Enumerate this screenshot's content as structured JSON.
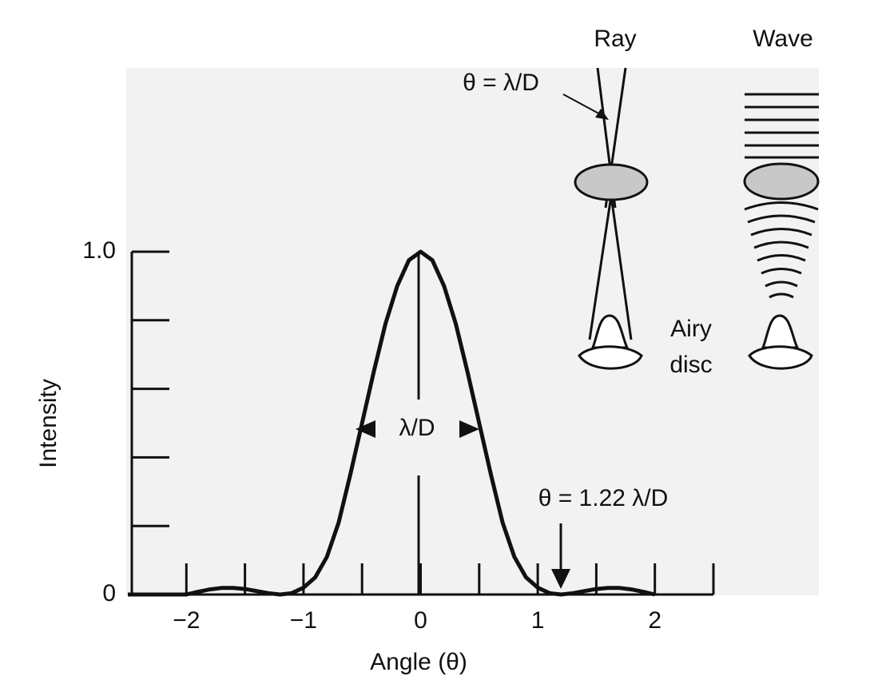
{
  "chart_data": {
    "type": "line",
    "x_label": "Angle (θ)",
    "y_label": "Intensity",
    "x": [
      -2.5,
      -2.0,
      -1.9,
      -1.8,
      -1.7,
      -1.6,
      -1.5,
      -1.4,
      -1.3,
      -1.2,
      -1.1,
      -1.0,
      -0.9,
      -0.8,
      -0.7,
      -0.6,
      -0.5,
      -0.4,
      -0.3,
      -0.2,
      -0.1,
      0,
      0.1,
      0.2,
      0.3,
      0.4,
      0.5,
      0.6,
      0.7,
      0.8,
      0.9,
      1.0,
      1.1,
      1.2,
      1.3,
      1.4,
      1.5,
      1.6,
      1.7,
      1.8,
      1.9,
      2.0
    ],
    "values": [
      0,
      0,
      0.008,
      0.015,
      0.019,
      0.019,
      0.016,
      0.01,
      0.004,
      0,
      0.004,
      0.02,
      0.05,
      0.11,
      0.21,
      0.35,
      0.5,
      0.65,
      0.79,
      0.9,
      0.975,
      1,
      0.975,
      0.9,
      0.79,
      0.65,
      0.5,
      0.35,
      0.21,
      0.11,
      0.05,
      0.02,
      0.004,
      0,
      0.004,
      0.01,
      0.016,
      0.019,
      0.019,
      0.015,
      0.008,
      0
    ],
    "color": "#111111",
    "xlim": [
      -2.5,
      2.5
    ],
    "ylim": [
      0,
      1
    ],
    "xticks": [
      {
        "value": -2,
        "label": "−2"
      },
      {
        "value": -1,
        "label": "−1"
      },
      0,
      1,
      2
    ],
    "xminor_ticks": [
      -1.5,
      -0.5,
      0.5,
      1.5,
      2.5
    ],
    "yticks": [
      0,
      {
        "value": 1,
        "label": "1.0"
      }
    ],
    "yminor_ticks": [
      0.2,
      0.4,
      0.6,
      0.8
    ],
    "annotations": {
      "width": "λ/D",
      "first_min": "θ = 1.22 λ/D",
      "ray": "Ray",
      "wave": "Wave",
      "ray_angle": "θ = λ/D",
      "airy_1": "Airy",
      "airy_2": "disc"
    }
  }
}
